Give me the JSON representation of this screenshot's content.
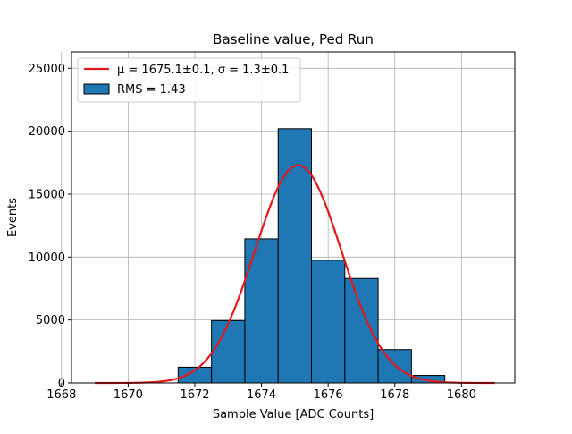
{
  "chart_data": {
    "type": "bar",
    "title": "Baseline value, Ped Run",
    "xlabel": "Sample Value [ADC Counts]",
    "ylabel": "Events",
    "xlim": [
      1668.3,
      1681.6
    ],
    "ylim": [
      0,
      26300
    ],
    "grid": true,
    "legend_position": "top-left",
    "xticks": [
      1668,
      1670,
      1672,
      1674,
      1676,
      1678,
      1680
    ],
    "yticks": [
      0,
      5000,
      10000,
      15000,
      20000,
      25000
    ],
    "bins": [
      {
        "x0": 1671.5,
        "x1": 1672.5,
        "count": 1250
      },
      {
        "x0": 1672.5,
        "x1": 1673.5,
        "count": 4950
      },
      {
        "x0": 1673.5,
        "x1": 1674.5,
        "count": 11450
      },
      {
        "x0": 1674.5,
        "x1": 1675.5,
        "count": 20200
      },
      {
        "x0": 1675.5,
        "x1": 1676.5,
        "count": 9750
      },
      {
        "x0": 1676.5,
        "x1": 1677.5,
        "count": 8300
      },
      {
        "x0": 1677.5,
        "x1": 1678.5,
        "count": 2650
      },
      {
        "x0": 1678.5,
        "x1": 1679.5,
        "count": 600
      }
    ],
    "fit": {
      "type": "gaussian",
      "mu": 1675.1,
      "sigma": 1.3,
      "amplitude": 17300,
      "x_range": [
        1669,
        1681
      ]
    },
    "legend": [
      {
        "label": "μ = 1675.1±0.1, σ = 1.3±0.1",
        "kind": "line",
        "color": "#e31a1c"
      },
      {
        "label": "RMS = 1.43",
        "kind": "patch",
        "color": "#1f77b4"
      }
    ],
    "colors": {
      "bar_fill": "#1f77b4",
      "bar_edge": "#000000",
      "fit_line": "#e31a1c",
      "grid": "#b0b0b0"
    }
  }
}
